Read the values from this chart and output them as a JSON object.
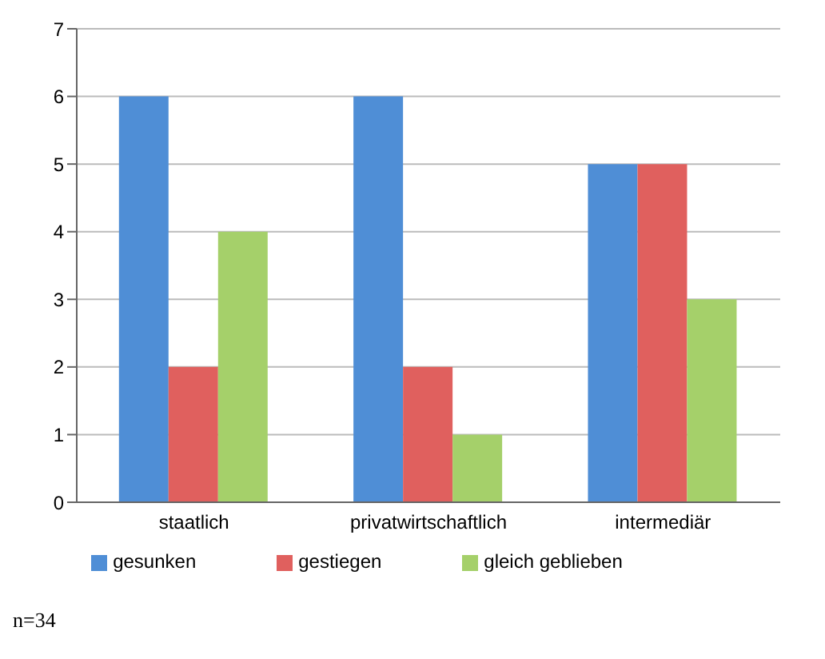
{
  "chart_data": {
    "type": "bar",
    "categories": [
      "staatlich",
      "privatwirtschaftlich",
      "intermediär"
    ],
    "series": [
      {
        "name": "gesunken",
        "color": "#4f8ed6",
        "values": [
          6,
          6,
          5
        ]
      },
      {
        "name": "gestiegen",
        "color": "#e0605e",
        "values": [
          2,
          2,
          5
        ]
      },
      {
        "name": "gleich geblieben",
        "color": "#a5d06a",
        "values": [
          4,
          1,
          3
        ]
      }
    ],
    "ylim": [
      0,
      7
    ],
    "yticks": [
      0,
      1,
      2,
      3,
      4,
      5,
      6,
      7
    ],
    "grid": "y",
    "legend": "bottom",
    "annotations": [
      "n=34"
    ]
  }
}
